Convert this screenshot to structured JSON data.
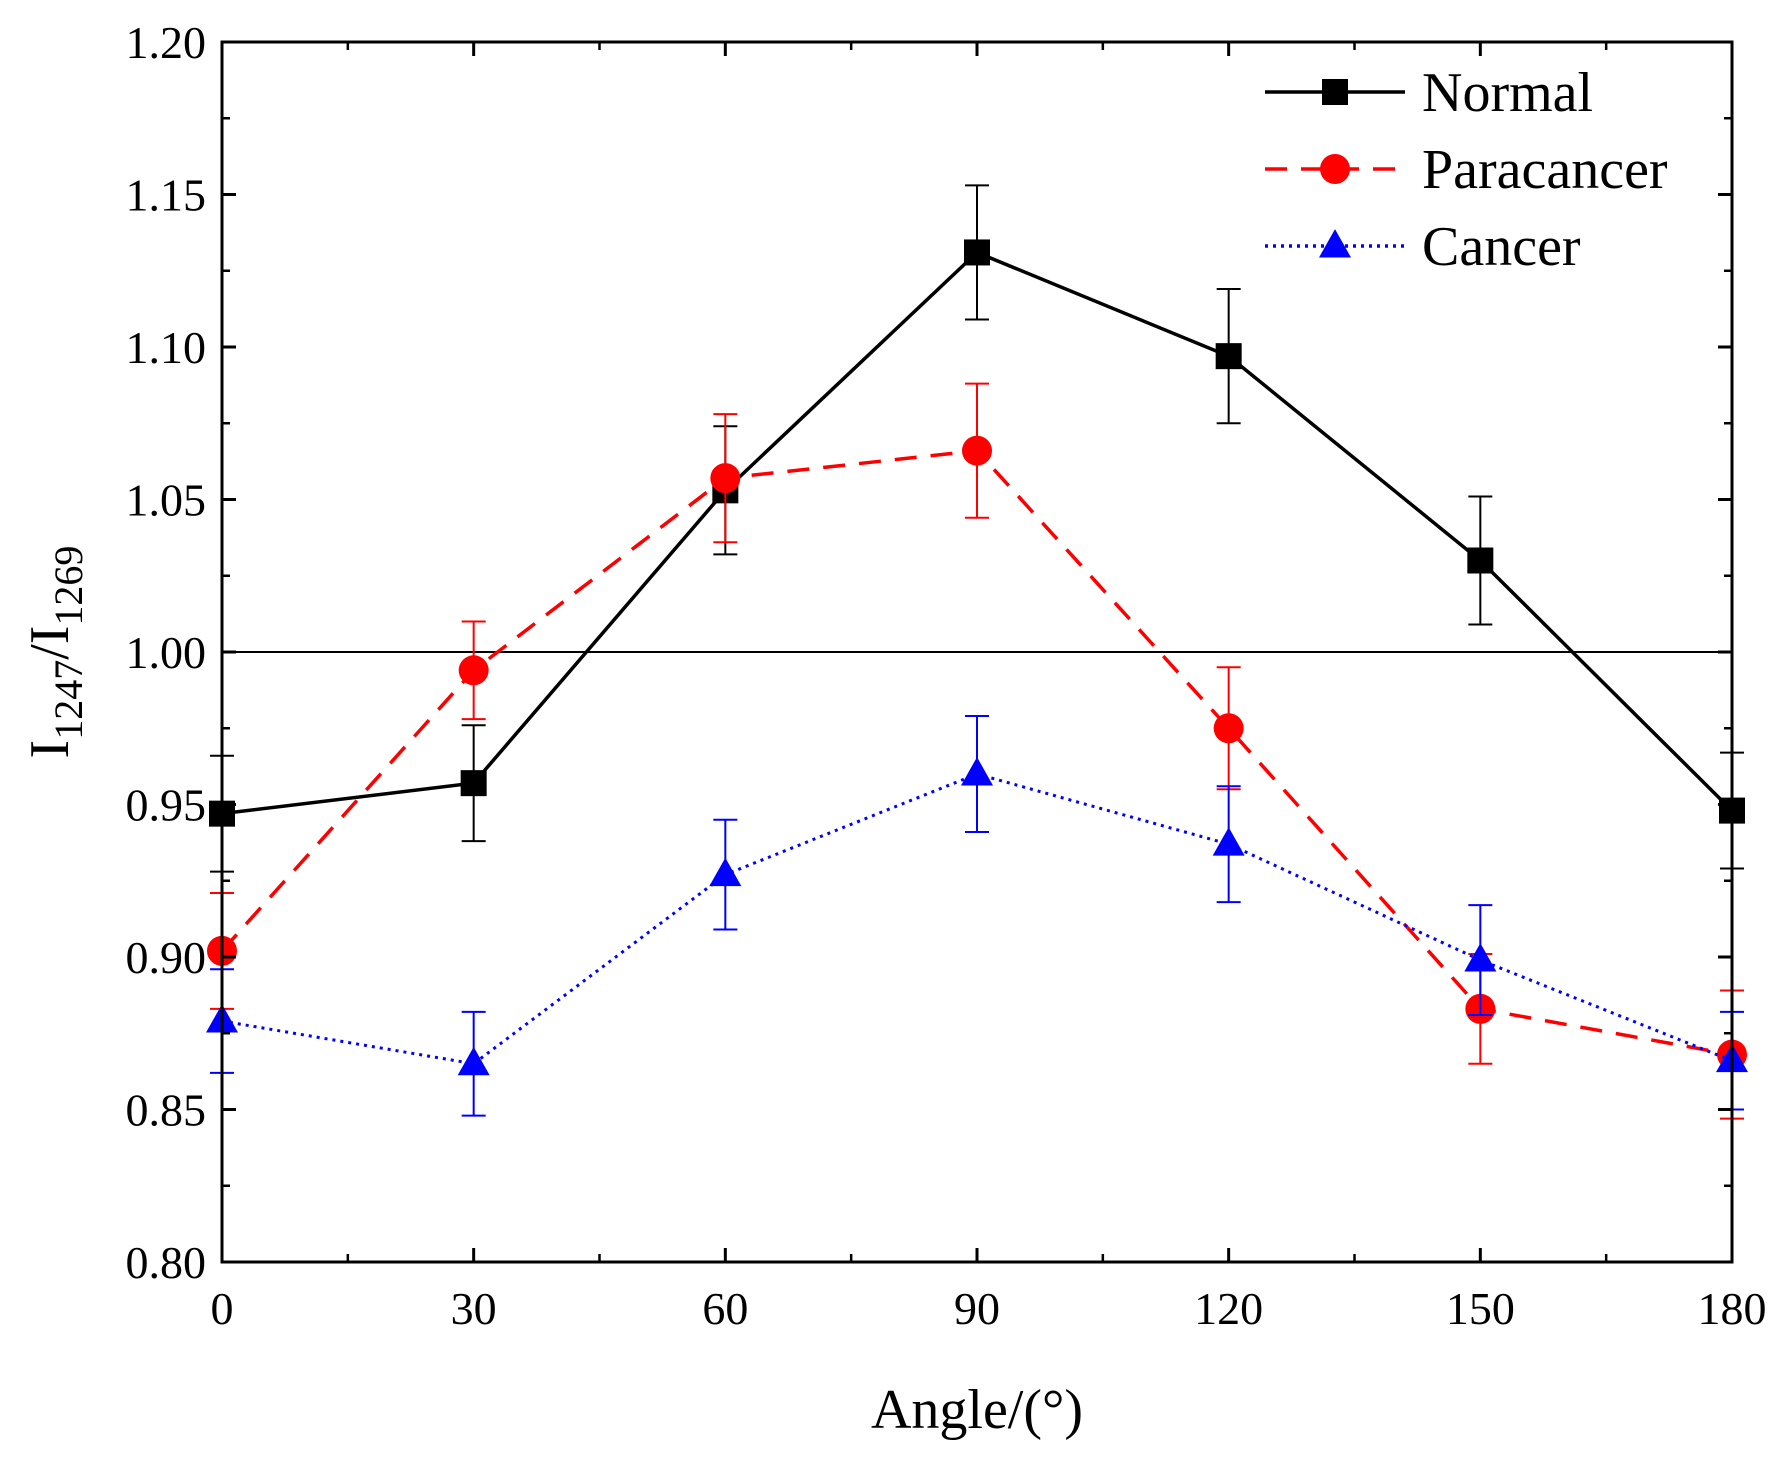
{
  "chart_data": {
    "type": "line",
    "title": "",
    "xlabel": "Angle/(°)",
    "ylabel": {
      "base": "I",
      "num_sub": "1247",
      "sep": "/",
      "den_base": "I",
      "den_sub": "1269"
    },
    "xlim": [
      0,
      180
    ],
    "ylim": [
      0.8,
      1.2
    ],
    "x_ticks": [
      0,
      30,
      60,
      90,
      120,
      150,
      180
    ],
    "x_tick_labels": [
      "0",
      "30",
      "60",
      "90",
      "120",
      "150",
      "180"
    ],
    "y_ticks": [
      0.8,
      0.85,
      0.9,
      0.95,
      1.0,
      1.05,
      1.1,
      1.15,
      1.2
    ],
    "y_tick_labels": [
      "0.80",
      "0.85",
      "0.90",
      "0.95",
      "1.00",
      "1.05",
      "1.10",
      "1.15",
      "1.20"
    ],
    "reference_line": {
      "y": 1.0
    },
    "legend_position": "top-right",
    "series": [
      {
        "name": "Normal",
        "color": "#000000",
        "marker": "square",
        "line_style": "solid",
        "x": [
          0,
          30,
          60,
          90,
          120,
          150,
          180
        ],
        "y": [
          0.947,
          0.957,
          1.053,
          1.131,
          1.097,
          1.03,
          0.948
        ],
        "error": [
          0.019,
          0.019,
          0.021,
          0.022,
          0.022,
          0.021,
          0.019
        ]
      },
      {
        "name": "Paracancer",
        "color": "#ff0000",
        "marker": "circle",
        "line_style": "dashed",
        "x": [
          0,
          30,
          60,
          90,
          120,
          150,
          180
        ],
        "y": [
          0.902,
          0.994,
          1.057,
          1.066,
          0.975,
          0.883,
          0.868
        ],
        "error": [
          0.019,
          0.016,
          0.021,
          0.022,
          0.02,
          0.018,
          0.021
        ]
      },
      {
        "name": "Cancer",
        "color": "#0000ff",
        "marker": "triangle",
        "line_style": "dotted",
        "x": [
          0,
          30,
          60,
          90,
          120,
          150,
          180
        ],
        "y": [
          0.879,
          0.865,
          0.927,
          0.96,
          0.937,
          0.899,
          0.866
        ],
        "error": [
          0.017,
          0.017,
          0.018,
          0.019,
          0.019,
          0.018,
          0.016
        ]
      }
    ]
  }
}
